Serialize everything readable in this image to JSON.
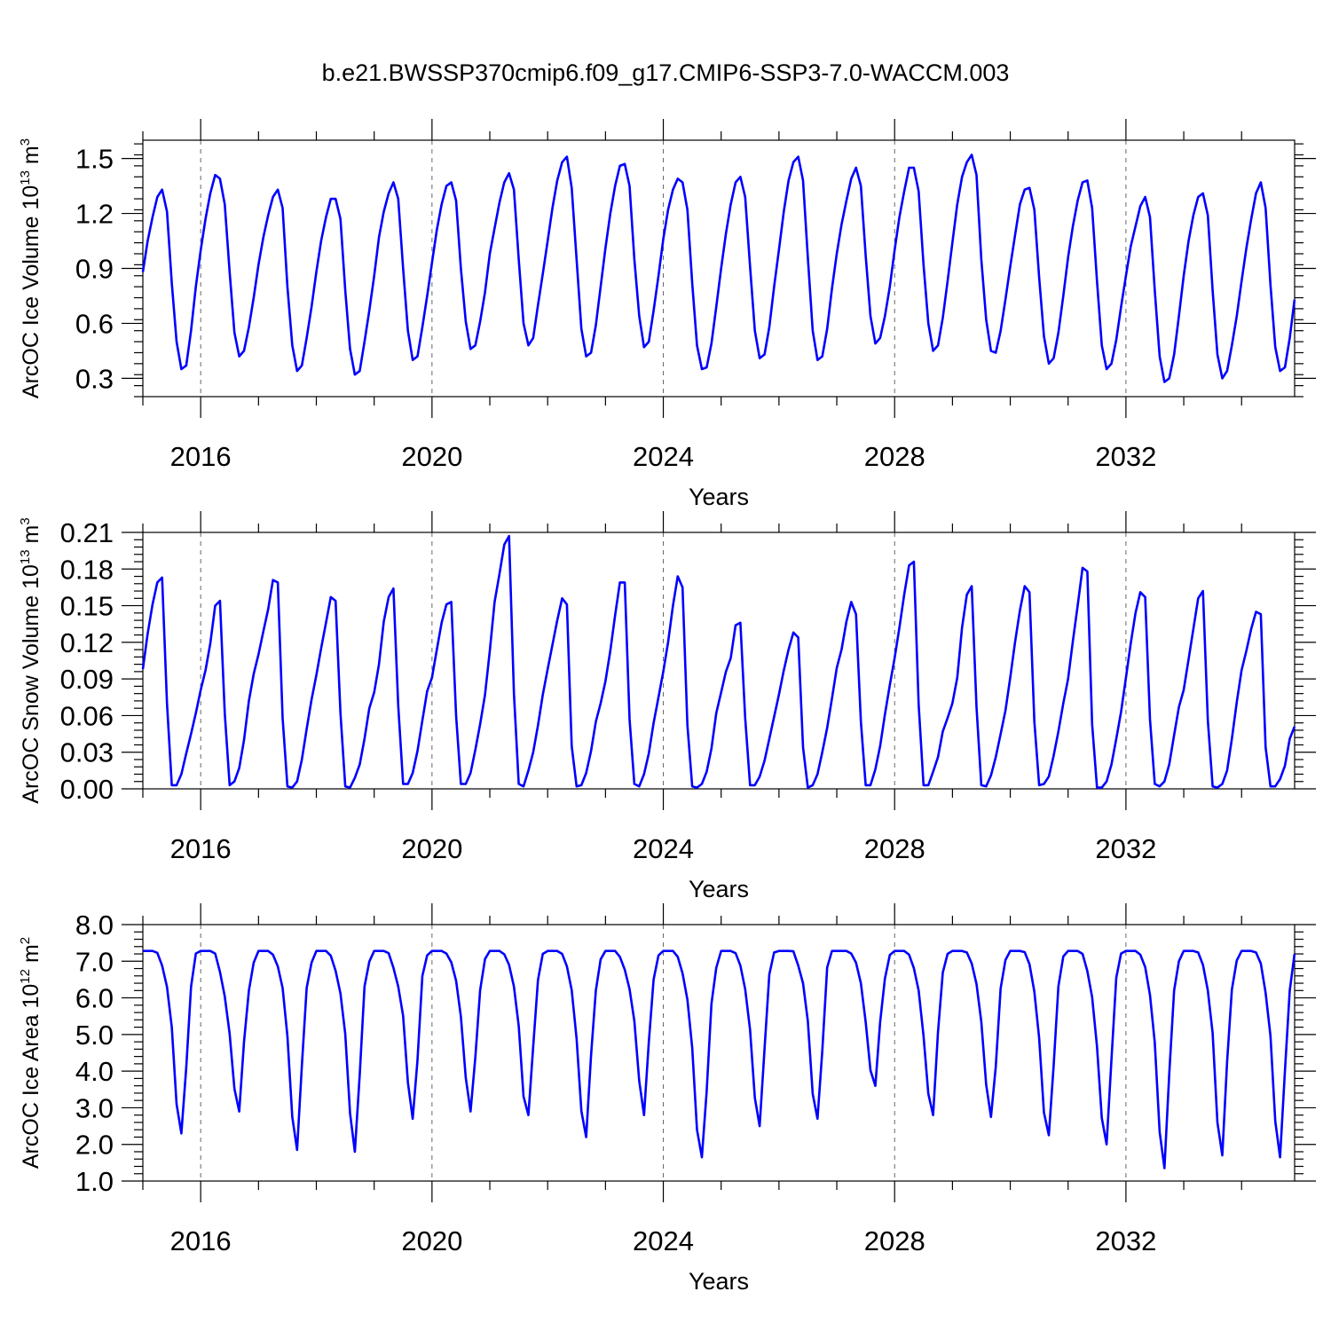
{
  "title": "b.e21.BWSSP370cmip6.f09_g17.CMIP6-SSP3-7.0-WACCM.003",
  "colors": {
    "line": "#0000ff",
    "axis": "#000000",
    "grid": "#666666"
  },
  "chart_data": [
    {
      "type": "line",
      "ylabel": "ArcOC Ice Volume 10",
      "ylabel_exp": "13",
      "ylabel_unit": " m",
      "ylabel_unit_exp": "3",
      "xlabel": "Years",
      "xlim": [
        2015.0,
        2034.917
      ],
      "ylim": [
        0.2,
        1.6
      ],
      "yticks": [
        0.3,
        0.6,
        0.9,
        1.2,
        1.5
      ],
      "ytick_labels": [
        "0.3",
        "0.6",
        "0.9",
        "1.2",
        "1.5"
      ],
      "xticks": [
        2016,
        2020,
        2024,
        2028,
        2032
      ],
      "xtick_labels": [
        "2016",
        "2020",
        "2024",
        "2028",
        "2032"
      ],
      "grid": "dashed vertical lines at x ticks",
      "x_start": 2015.0,
      "x_step": 0.08333,
      "yearly": {
        "max": [
          1.33,
          1.41,
          1.33,
          1.28,
          1.37,
          1.37,
          1.42,
          1.51,
          1.47,
          1.39,
          1.4,
          1.51,
          1.45,
          1.45,
          1.52,
          1.34,
          1.38,
          1.29,
          1.31,
          1.37
        ],
        "min": [
          0.35,
          0.42,
          0.34,
          0.32,
          0.4,
          0.46,
          0.48,
          0.42,
          0.47,
          0.35,
          0.41,
          0.4,
          0.49,
          0.45,
          0.44,
          0.38,
          0.35,
          0.28,
          0.3,
          0.34
        ]
      },
      "series": [
        {
          "values": [
            0.88,
            1.05,
            1.18,
            1.29,
            1.33,
            1.21,
            0.82,
            0.5,
            0.35,
            0.37,
            0.56,
            0.8,
            1.0,
            1.17,
            1.31,
            1.41,
            1.39,
            1.25,
            0.88,
            0.55,
            0.42,
            0.45,
            0.58,
            0.74,
            0.92,
            1.07,
            1.19,
            1.29,
            1.33,
            1.23,
            0.8,
            0.48,
            0.34,
            0.37,
            0.52,
            0.69,
            0.88,
            1.05,
            1.18,
            1.28,
            1.28,
            1.17,
            0.78,
            0.46,
            0.32,
            0.34,
            0.5,
            0.67,
            0.86,
            1.07,
            1.21,
            1.31,
            1.37,
            1.28,
            0.9,
            0.56,
            0.4,
            0.42,
            0.58,
            0.75,
            0.93,
            1.11,
            1.25,
            1.35,
            1.37,
            1.27,
            0.9,
            0.61,
            0.46,
            0.48,
            0.61,
            0.77,
            0.98,
            1.12,
            1.26,
            1.37,
            1.42,
            1.33,
            0.95,
            0.6,
            0.48,
            0.52,
            0.7,
            0.87,
            1.05,
            1.23,
            1.38,
            1.48,
            1.51,
            1.34,
            0.95,
            0.57,
            0.42,
            0.44,
            0.59,
            0.8,
            1.01,
            1.2,
            1.35,
            1.46,
            1.47,
            1.35,
            0.95,
            0.64,
            0.47,
            0.5,
            0.67,
            0.86,
            1.06,
            1.22,
            1.33,
            1.39,
            1.37,
            1.22,
            0.82,
            0.48,
            0.35,
            0.36,
            0.49,
            0.69,
            0.9,
            1.09,
            1.25,
            1.37,
            1.4,
            1.29,
            0.91,
            0.56,
            0.41,
            0.43,
            0.58,
            0.8,
            1.0,
            1.21,
            1.38,
            1.48,
            1.51,
            1.38,
            0.96,
            0.56,
            0.4,
            0.42,
            0.57,
            0.79,
            0.98,
            1.14,
            1.27,
            1.39,
            1.45,
            1.35,
            0.97,
            0.64,
            0.49,
            0.52,
            0.64,
            0.8,
            1.0,
            1.18,
            1.32,
            1.45,
            1.45,
            1.32,
            0.92,
            0.6,
            0.45,
            0.48,
            0.63,
            0.83,
            1.04,
            1.25,
            1.4,
            1.48,
            1.52,
            1.41,
            0.95,
            0.62,
            0.45,
            0.44,
            0.56,
            0.73,
            0.91,
            1.08,
            1.25,
            1.33,
            1.34,
            1.22,
            0.85,
            0.53,
            0.38,
            0.41,
            0.55,
            0.75,
            0.96,
            1.13,
            1.27,
            1.37,
            1.38,
            1.23,
            0.83,
            0.48,
            0.35,
            0.38,
            0.51,
            0.69,
            0.86,
            1.02,
            1.13,
            1.24,
            1.29,
            1.18,
            0.78,
            0.42,
            0.28,
            0.3,
            0.43,
            0.64,
            0.86,
            1.05,
            1.19,
            1.29,
            1.31,
            1.19,
            0.78,
            0.43,
            0.3,
            0.34,
            0.48,
            0.64,
            0.83,
            1.01,
            1.17,
            1.31,
            1.37,
            1.23,
            0.81,
            0.47,
            0.34,
            0.36,
            0.52,
            0.73
          ]
        }
      ]
    },
    {
      "type": "line",
      "ylabel": "ArcOC Snow Volume 10",
      "ylabel_exp": "13",
      "ylabel_unit": " m",
      "ylabel_unit_exp": "3",
      "xlabel": "Years",
      "xlim": [
        2015.0,
        2034.917
      ],
      "ylim": [
        0.0,
        0.21
      ],
      "yticks": [
        0.0,
        0.03,
        0.06,
        0.09,
        0.12,
        0.15,
        0.18,
        0.21
      ],
      "ytick_labels": [
        "0.00",
        "0.03",
        "0.06",
        "0.09",
        "0.12",
        "0.15",
        "0.18",
        "0.21"
      ],
      "xticks": [
        2016,
        2020,
        2024,
        2028,
        2032
      ],
      "xtick_labels": [
        "2016",
        "2020",
        "2024",
        "2028",
        "2032"
      ],
      "grid": "dashed vertical lines at x ticks",
      "x_start": 2015.0,
      "x_step": 0.08333,
      "yearly": {
        "max": [
          0.173,
          0.154,
          0.171,
          0.157,
          0.164,
          0.153,
          0.207,
          0.156,
          0.169,
          0.174,
          0.136,
          0.128,
          0.153,
          0.186,
          0.166,
          0.166,
          0.181,
          0.161,
          0.162,
          0.145
        ],
        "min": [
          0.003,
          0.003,
          0.002,
          0.002,
          0.004,
          0.004,
          0.003,
          0.002,
          0.003,
          0.002,
          0.003,
          0.001,
          0.003,
          0.003,
          0.003,
          0.003,
          0.001,
          0.003,
          0.002,
          0.002
        ]
      },
      "series": [
        {
          "values": [
            0.098,
            0.127,
            0.151,
            0.169,
            0.173,
            0.07,
            0.003,
            0.003,
            0.012,
            0.029,
            0.045,
            0.062,
            0.081,
            0.097,
            0.119,
            0.15,
            0.154,
            0.062,
            0.003,
            0.006,
            0.017,
            0.04,
            0.072,
            0.094,
            0.11,
            0.129,
            0.147,
            0.171,
            0.169,
            0.058,
            0.002,
            0.001,
            0.006,
            0.024,
            0.049,
            0.073,
            0.093,
            0.115,
            0.136,
            0.157,
            0.154,
            0.062,
            0.002,
            0.001,
            0.009,
            0.02,
            0.041,
            0.066,
            0.079,
            0.102,
            0.137,
            0.157,
            0.164,
            0.068,
            0.004,
            0.004,
            0.013,
            0.031,
            0.056,
            0.08,
            0.091,
            0.114,
            0.136,
            0.151,
            0.153,
            0.06,
            0.004,
            0.004,
            0.013,
            0.032,
            0.053,
            0.077,
            0.113,
            0.153,
            0.176,
            0.2,
            0.207,
            0.078,
            0.004,
            0.002,
            0.015,
            0.03,
            0.052,
            0.077,
            0.098,
            0.118,
            0.138,
            0.156,
            0.151,
            0.035,
            0.002,
            0.003,
            0.013,
            0.031,
            0.055,
            0.07,
            0.088,
            0.113,
            0.142,
            0.169,
            0.169,
            0.057,
            0.004,
            0.002,
            0.012,
            0.029,
            0.054,
            0.075,
            0.096,
            0.12,
            0.15,
            0.174,
            0.165,
            0.052,
            0.002,
            0.001,
            0.004,
            0.014,
            0.033,
            0.062,
            0.079,
            0.096,
            0.107,
            0.134,
            0.136,
            0.058,
            0.003,
            0.003,
            0.01,
            0.023,
            0.041,
            0.059,
            0.077,
            0.097,
            0.114,
            0.128,
            0.124,
            0.034,
            0.001,
            0.003,
            0.012,
            0.03,
            0.05,
            0.074,
            0.099,
            0.114,
            0.137,
            0.153,
            0.143,
            0.055,
            0.003,
            0.003,
            0.016,
            0.035,
            0.061,
            0.085,
            0.107,
            0.132,
            0.159,
            0.183,
            0.186,
            0.069,
            0.003,
            0.003,
            0.014,
            0.026,
            0.047,
            0.058,
            0.07,
            0.091,
            0.132,
            0.159,
            0.166,
            0.067,
            0.003,
            0.002,
            0.011,
            0.026,
            0.045,
            0.064,
            0.091,
            0.12,
            0.146,
            0.166,
            0.161,
            0.055,
            0.003,
            0.004,
            0.01,
            0.027,
            0.047,
            0.07,
            0.09,
            0.121,
            0.15,
            0.181,
            0.178,
            0.053,
            0.001,
            0.001,
            0.006,
            0.02,
            0.041,
            0.063,
            0.091,
            0.119,
            0.144,
            0.161,
            0.157,
            0.057,
            0.004,
            0.002,
            0.006,
            0.02,
            0.044,
            0.067,
            0.081,
            0.106,
            0.131,
            0.156,
            0.162,
            0.056,
            0.002,
            0.001,
            0.004,
            0.015,
            0.041,
            0.071,
            0.097,
            0.113,
            0.131,
            0.145,
            0.143,
            0.034,
            0.002,
            0.002,
            0.008,
            0.019,
            0.041,
            0.051
          ]
        }
      ]
    },
    {
      "type": "line",
      "ylabel": "ArcOC Ice Area 10",
      "ylabel_exp": "12",
      "ylabel_unit": " m",
      "ylabel_unit_exp": "2",
      "xlabel": "Years",
      "xlim": [
        2015.0,
        2034.917
      ],
      "ylim": [
        1.0,
        8.0
      ],
      "yticks": [
        1.0,
        2.0,
        3.0,
        4.0,
        5.0,
        6.0,
        7.0,
        8.0
      ],
      "ytick_labels": [
        "1.0",
        "2.0",
        "3.0",
        "4.0",
        "5.0",
        "6.0",
        "7.0",
        "8.0"
      ],
      "xticks": [
        2016,
        2020,
        2024,
        2028,
        2032
      ],
      "xtick_labels": [
        "2016",
        "2020",
        "2024",
        "2028",
        "2032"
      ],
      "grid": "dashed vertical lines at x ticks",
      "x_start": 2015.0,
      "x_step": 0.08333,
      "yearly": {
        "max": [
          7.28,
          7.28,
          7.28,
          7.28,
          7.28,
          7.28,
          7.28,
          7.28,
          7.28,
          7.28,
          7.28,
          7.28,
          7.28,
          7.28,
          7.28,
          7.28,
          7.28,
          7.28,
          7.28,
          7.28
        ],
        "min": [
          2.3,
          2.9,
          1.85,
          1.8,
          2.7,
          2.9,
          2.8,
          2.2,
          2.8,
          1.65,
          2.5,
          2.7,
          3.6,
          2.8,
          2.75,
          2.25,
          2.0,
          1.35,
          1.7,
          1.65
        ]
      },
      "series": [
        {
          "values": [
            7.28,
            7.28,
            7.28,
            7.23,
            6.88,
            6.3,
            5.2,
            3.1,
            2.3,
            4.1,
            6.3,
            7.21,
            7.28,
            7.28,
            7.28,
            7.21,
            6.71,
            6.04,
            5.02,
            3.52,
            2.9,
            4.8,
            6.2,
            6.96,
            7.28,
            7.28,
            7.28,
            7.18,
            6.86,
            6.27,
            4.96,
            2.75,
            1.85,
            4.15,
            6.27,
            6.96,
            7.28,
            7.28,
            7.28,
            7.15,
            6.74,
            6.12,
            5.01,
            2.85,
            1.8,
            3.9,
            6.31,
            6.99,
            7.28,
            7.28,
            7.28,
            7.22,
            6.82,
            6.31,
            5.51,
            3.69,
            2.7,
            4.3,
            6.6,
            7.16,
            7.28,
            7.28,
            7.28,
            7.21,
            6.97,
            6.47,
            5.49,
            3.82,
            2.9,
            4.38,
            6.21,
            7.06,
            7.28,
            7.28,
            7.28,
            7.19,
            6.9,
            6.31,
            5.23,
            3.31,
            2.8,
            4.67,
            6.49,
            7.2,
            7.28,
            7.28,
            7.28,
            7.2,
            6.86,
            6.21,
            4.89,
            2.91,
            2.2,
            4.43,
            6.2,
            7.05,
            7.28,
            7.28,
            7.28,
            7.12,
            6.77,
            6.24,
            5.37,
            3.73,
            2.8,
            4.79,
            6.5,
            7.16,
            7.28,
            7.28,
            7.28,
            7.12,
            6.67,
            5.95,
            4.64,
            2.4,
            1.65,
            3.45,
            5.84,
            6.82,
            7.28,
            7.28,
            7.28,
            7.22,
            6.88,
            6.24,
            5.13,
            3.27,
            2.5,
            4.6,
            6.64,
            7.24,
            7.28,
            7.28,
            7.28,
            7.27,
            6.88,
            6.4,
            5.37,
            3.38,
            2.7,
            4.55,
            6.83,
            7.28,
            7.28,
            7.28,
            7.28,
            7.21,
            6.96,
            6.4,
            5.34,
            4.02,
            3.6,
            5.34,
            6.53,
            7.17,
            7.28,
            7.28,
            7.28,
            7.18,
            6.81,
            6.2,
            4.96,
            3.38,
            2.8,
            5.07,
            6.69,
            7.2,
            7.28,
            7.28,
            7.28,
            7.24,
            6.94,
            6.38,
            5.35,
            3.63,
            2.75,
            4.12,
            6.26,
            7.03,
            7.28,
            7.28,
            7.28,
            7.25,
            6.92,
            6.17,
            4.9,
            2.87,
            2.25,
            4.14,
            6.32,
            7.13,
            7.28,
            7.28,
            7.28,
            7.2,
            6.73,
            6.02,
            4.67,
            2.72,
            2.0,
            4.32,
            6.55,
            7.21,
            7.28,
            7.28,
            7.28,
            7.18,
            6.84,
            6.08,
            4.78,
            2.34,
            1.35,
            3.92,
            6.2,
            7.0,
            7.28,
            7.28,
            7.28,
            7.24,
            6.9,
            6.2,
            5.04,
            2.6,
            1.7,
            4.25,
            6.23,
            7.02,
            7.28,
            7.28,
            7.28,
            7.24,
            6.94,
            6.14,
            4.96,
            2.63,
            1.65,
            4.01,
            6.2,
            7.2
          ]
        }
      ]
    }
  ]
}
